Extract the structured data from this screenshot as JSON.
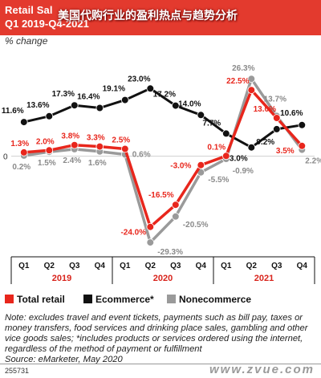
{
  "header": {
    "title_line1": "Retail Sal",
    "title_line2": "Q1 2019-Q4-2021",
    "overlay_title": "美国代购行业的盈利热点与趋势分析",
    "unit": "% change"
  },
  "chart_data": {
    "type": "line",
    "categories": [
      "Q1",
      "Q2",
      "Q3",
      "Q4",
      "Q1",
      "Q2",
      "Q3",
      "Q4",
      "Q1",
      "Q2",
      "Q3",
      "Q4"
    ],
    "year_groups": [
      {
        "label": "2019",
        "start": 0,
        "end": 3
      },
      {
        "label": "2020",
        "start": 4,
        "end": 7
      },
      {
        "label": "2021",
        "start": 8,
        "end": 11
      }
    ],
    "ylim": [
      -32,
      28
    ],
    "series": [
      {
        "name": "Total retail",
        "color": "#e8261c",
        "values": [
          1.3,
          2.0,
          3.8,
          3.3,
          2.5,
          -24.0,
          -16.5,
          -3.0,
          0.1,
          22.5,
          13.0,
          3.5
        ],
        "labels": [
          "1.3%",
          "2.0%",
          "3.8%",
          "3.3%",
          "2.5%",
          "-24.0%",
          "-16.5%",
          "-3.0%",
          "0.1%",
          "22.5%",
          "13.0%",
          "3.5%"
        ]
      },
      {
        "name": "Ecommerce*",
        "color": "#111111",
        "values": [
          11.6,
          13.6,
          17.3,
          16.4,
          19.1,
          23.0,
          17.2,
          14.0,
          7.7,
          3.0,
          9.2,
          10.6
        ],
        "labels": [
          "11.6%",
          "13.6%",
          "17.3%",
          "16.4%",
          "19.1%",
          "23.0%",
          "17.2%",
          "14.0%",
          "7.7%",
          "3.0%",
          "9.2%",
          "10.6%"
        ]
      },
      {
        "name": "Nonecommerce",
        "color": "#9a9a9a",
        "values": [
          0.2,
          1.5,
          2.4,
          1.6,
          0.6,
          -29.3,
          -20.5,
          -5.5,
          -0.9,
          26.3,
          13.7,
          2.2
        ],
        "labels": [
          "0.2%",
          "1.5%",
          "2.4%",
          "1.6%",
          "0.6%",
          "-29.3%",
          "-20.5%",
          "-5.5%",
          "-0.9%",
          "26.3%",
          "13.7%",
          "2.2%"
        ]
      }
    ],
    "zero_label": "0"
  },
  "notes": {
    "text": "Note: excludes travel and event tickets, payments such as bill pay, taxes or money transfers, food services and drinking place sales, gambling and other vice goods sales; *includes products or services ordered using the internet, regardless of the method of payment or fulfillment",
    "source": "Source: eMarketer, May 2020"
  },
  "footer": {
    "id": "255731",
    "site": "www.zvue.com"
  }
}
